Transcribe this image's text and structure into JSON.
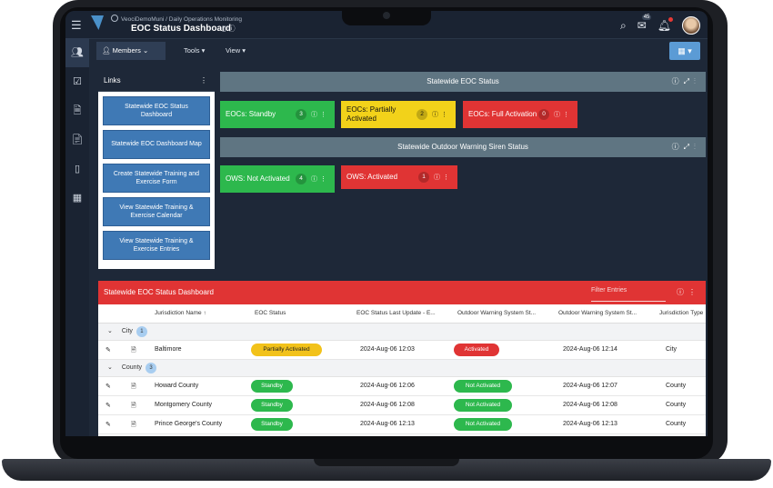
{
  "window": {
    "org": "VeociDemoMuni",
    "breadcrumb_sep": "/",
    "breadcrumb_page": "Daily Operations Monitoring",
    "title": "EOC Status Dashboard"
  },
  "topbar": {
    "mail_count": "45"
  },
  "menubar": {
    "members": "Members",
    "tools": "Tools",
    "view": "View"
  },
  "links": {
    "title": "Links",
    "items": [
      "Statewide EOC Status Dashboard",
      "Statewide EOC Dashboard Map",
      "Create Statewide Training and Exercise Form",
      "View Statewide Training & Exercise Calendar",
      "View Statewide Training & Exercise Entries"
    ]
  },
  "eoc_status": {
    "title": "Statewide EOC Status",
    "tiles": [
      {
        "label": "EOCs: Standby",
        "count": "3"
      },
      {
        "label": "EOCs: Partially Activated",
        "count": "2"
      },
      {
        "label": "EOCs: Full Activation",
        "count": "0"
      }
    ]
  },
  "siren_status": {
    "title": "Statewide Outdoor Warning Siren Status",
    "tiles": [
      {
        "label": "OWS: Not Activated",
        "count": "4"
      },
      {
        "label": "OWS: Activated",
        "count": "1"
      }
    ]
  },
  "table": {
    "title": "Statewide EOC Status Dashboard",
    "filter_placeholder": "Filter Entries",
    "columns": [
      "Jurisdiction Name",
      "EOC Status",
      "EOC Status Last Update - E...",
      "Outdoor Warning System St...",
      "Outdoor Warning System St...",
      "Jurisdiction Type"
    ],
    "groups": [
      {
        "name": "City",
        "count": "1",
        "rows": [
          {
            "name": "Baltimore",
            "eoc": "Partially Activated",
            "eoc_date": "2024-Aug-06 12:03",
            "ows": "Activated",
            "ows_date": "2024-Aug-06 12:14",
            "type": "City"
          }
        ]
      },
      {
        "name": "County",
        "count": "3",
        "rows": [
          {
            "name": "Howard County",
            "eoc": "Standby",
            "eoc_date": "2024-Aug-06 12:06",
            "ows": "Not Activated",
            "ows_date": "2024-Aug-06 12:07",
            "type": "County"
          },
          {
            "name": "Montgomery County",
            "eoc": "Standby",
            "eoc_date": "2024-Aug-06 12:08",
            "ows": "Not Activated",
            "ows_date": "2024-Aug-06 12:08",
            "type": "County"
          },
          {
            "name": "Prince George's County",
            "eoc": "Standby",
            "eoc_date": "2024-Aug-06 12:13",
            "ows": "Not Activated",
            "ows_date": "2024-Aug-06 12:13",
            "type": "County"
          }
        ]
      }
    ]
  },
  "colors": {
    "standby": "#2db84d",
    "partial": "#f2d21a",
    "full": "#e03434",
    "header_bar": "#5f7582"
  }
}
